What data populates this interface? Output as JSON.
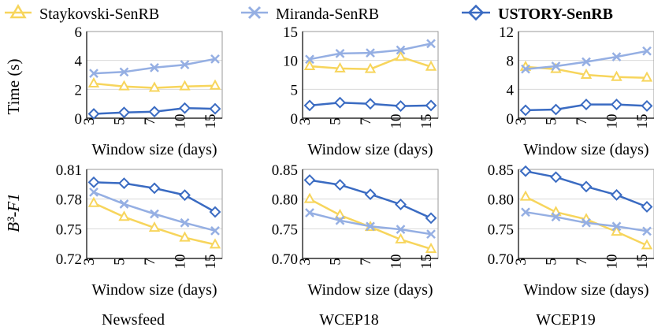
{
  "legend": [
    {
      "label": "Staykovski-SenRB",
      "bold": false
    },
    {
      "label": "Miranda-SenRB",
      "bold": false
    },
    {
      "label": "USTORY-SenRB",
      "bold": true
    }
  ],
  "colors": {
    "staykovski": "#F7D55C",
    "miranda": "#95AFE3",
    "ustory": "#3A6BC2",
    "axis": "#000000",
    "frame": "#9a9a9a"
  },
  "columns": [
    "Newsfeed",
    "WCEP18",
    "WCEP19"
  ],
  "row_ylabels": [
    "Time (s)",
    "B³-F1"
  ],
  "chart_data": [
    {
      "id": "time-newsfeed",
      "type": "line",
      "categories": [
        "3",
        "5",
        "7",
        "10",
        "15"
      ],
      "xlabel": "Window size (days)",
      "ylabel": "Time (s)",
      "ylim": [
        0,
        6
      ],
      "yticks": [
        "0",
        "2",
        "4",
        "6"
      ],
      "series": [
        {
          "name": "Staykovski-SenRB",
          "values": [
            2.4,
            2.2,
            2.1,
            2.2,
            2.25
          ]
        },
        {
          "name": "Miranda-SenRB",
          "values": [
            3.1,
            3.2,
            3.5,
            3.7,
            4.1
          ]
        },
        {
          "name": "USTORY-SenRB",
          "values": [
            0.3,
            0.4,
            0.45,
            0.7,
            0.65
          ]
        }
      ]
    },
    {
      "id": "time-wcep18",
      "type": "line",
      "categories": [
        "3",
        "5",
        "7",
        "10",
        "15"
      ],
      "xlabel": "Window size (days)",
      "ylabel": "",
      "ylim": [
        0,
        15
      ],
      "yticks": [
        "0",
        "5",
        "10",
        "15"
      ],
      "series": [
        {
          "name": "Staykovski-SenRB",
          "values": [
            9.0,
            8.6,
            8.5,
            10.6,
            8.9
          ]
        },
        {
          "name": "Miranda-SenRB",
          "values": [
            10.2,
            11.2,
            11.3,
            11.8,
            12.9
          ]
        },
        {
          "name": "USTORY-SenRB",
          "values": [
            2.2,
            2.7,
            2.5,
            2.1,
            2.2
          ]
        }
      ]
    },
    {
      "id": "time-wcep19",
      "type": "line",
      "categories": [
        "3",
        "5",
        "7",
        "10",
        "15"
      ],
      "xlabel": "Window size (days)",
      "ylabel": "",
      "ylim": [
        0,
        12
      ],
      "yticks": [
        "0",
        "4",
        "8",
        "12"
      ],
      "series": [
        {
          "name": "Staykovski-SenRB",
          "values": [
            7.1,
            6.8,
            6.0,
            5.7,
            5.6
          ]
        },
        {
          "name": "Miranda-SenRB",
          "values": [
            6.8,
            7.2,
            7.8,
            8.5,
            9.3
          ]
        },
        {
          "name": "USTORY-SenRB",
          "values": [
            1.1,
            1.2,
            1.9,
            1.9,
            1.7
          ]
        }
      ]
    },
    {
      "id": "f1-newsfeed",
      "type": "line",
      "categories": [
        "3",
        "5",
        "7",
        "10",
        "15"
      ],
      "xlabel": "Window size (days)",
      "ylabel": "B³-F1",
      "ylim": [
        0.72,
        0.81
      ],
      "yticks": [
        "0.72",
        "0.75",
        "0.78",
        "0.81"
      ],
      "series": [
        {
          "name": "Staykovski-SenRB",
          "values": [
            0.776,
            0.762,
            0.751,
            0.741,
            0.734
          ]
        },
        {
          "name": "Miranda-SenRB",
          "values": [
            0.787,
            0.775,
            0.765,
            0.756,
            0.748
          ]
        },
        {
          "name": "USTORY-SenRB",
          "values": [
            0.797,
            0.796,
            0.791,
            0.784,
            0.767
          ]
        }
      ]
    },
    {
      "id": "f1-wcep18",
      "type": "line",
      "categories": [
        "3",
        "5",
        "7",
        "10",
        "15"
      ],
      "xlabel": "Window size (days)",
      "ylabel": "",
      "ylim": [
        0.7,
        0.85
      ],
      "yticks": [
        "0.70",
        "0.75",
        "0.80",
        "0.85"
      ],
      "series": [
        {
          "name": "Staykovski-SenRB",
          "values": [
            0.8,
            0.773,
            0.753,
            0.732,
            0.716
          ]
        },
        {
          "name": "Miranda-SenRB",
          "values": [
            0.777,
            0.764,
            0.754,
            0.749,
            0.741
          ]
        },
        {
          "name": "USTORY-SenRB",
          "values": [
            0.832,
            0.824,
            0.808,
            0.791,
            0.768
          ]
        }
      ]
    },
    {
      "id": "f1-wcep19",
      "type": "line",
      "categories": [
        "3",
        "5",
        "7",
        "10",
        "15"
      ],
      "xlabel": "Window size (days)",
      "ylabel": "",
      "ylim": [
        0.7,
        0.85
      ],
      "yticks": [
        "0.70",
        "0.75",
        "0.80",
        "0.85"
      ],
      "series": [
        {
          "name": "Staykovski-SenRB",
          "values": [
            0.804,
            0.778,
            0.766,
            0.745,
            0.722
          ]
        },
        {
          "name": "Miranda-SenRB",
          "values": [
            0.778,
            0.77,
            0.76,
            0.754,
            0.746
          ]
        },
        {
          "name": "USTORY-SenRB",
          "values": [
            0.847,
            0.837,
            0.821,
            0.807,
            0.787
          ]
        }
      ]
    }
  ]
}
